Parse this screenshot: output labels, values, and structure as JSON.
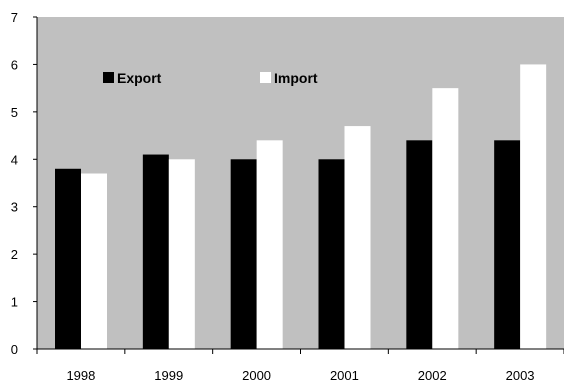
{
  "chart_data": {
    "type": "bar",
    "categories": [
      "1998",
      "1999",
      "2000",
      "2001",
      "2002",
      "2003"
    ],
    "series": [
      {
        "name": "Export",
        "values": [
          3.8,
          4.1,
          4.0,
          4.0,
          4.4,
          4.4
        ],
        "color": "#000000"
      },
      {
        "name": "Import",
        "values": [
          3.7,
          4.0,
          4.4,
          4.7,
          5.5,
          6.0
        ],
        "color": "#ffffff"
      }
    ],
    "yticks": [
      "0",
      "1",
      "2",
      "3",
      "4",
      "5",
      "6",
      "7"
    ],
    "ylim": [
      0,
      7
    ],
    "title": "",
    "xlabel": "",
    "ylabel": "",
    "grid": false,
    "legend_position": "top-left inside plot",
    "plot_background": "#c0c0c0"
  }
}
